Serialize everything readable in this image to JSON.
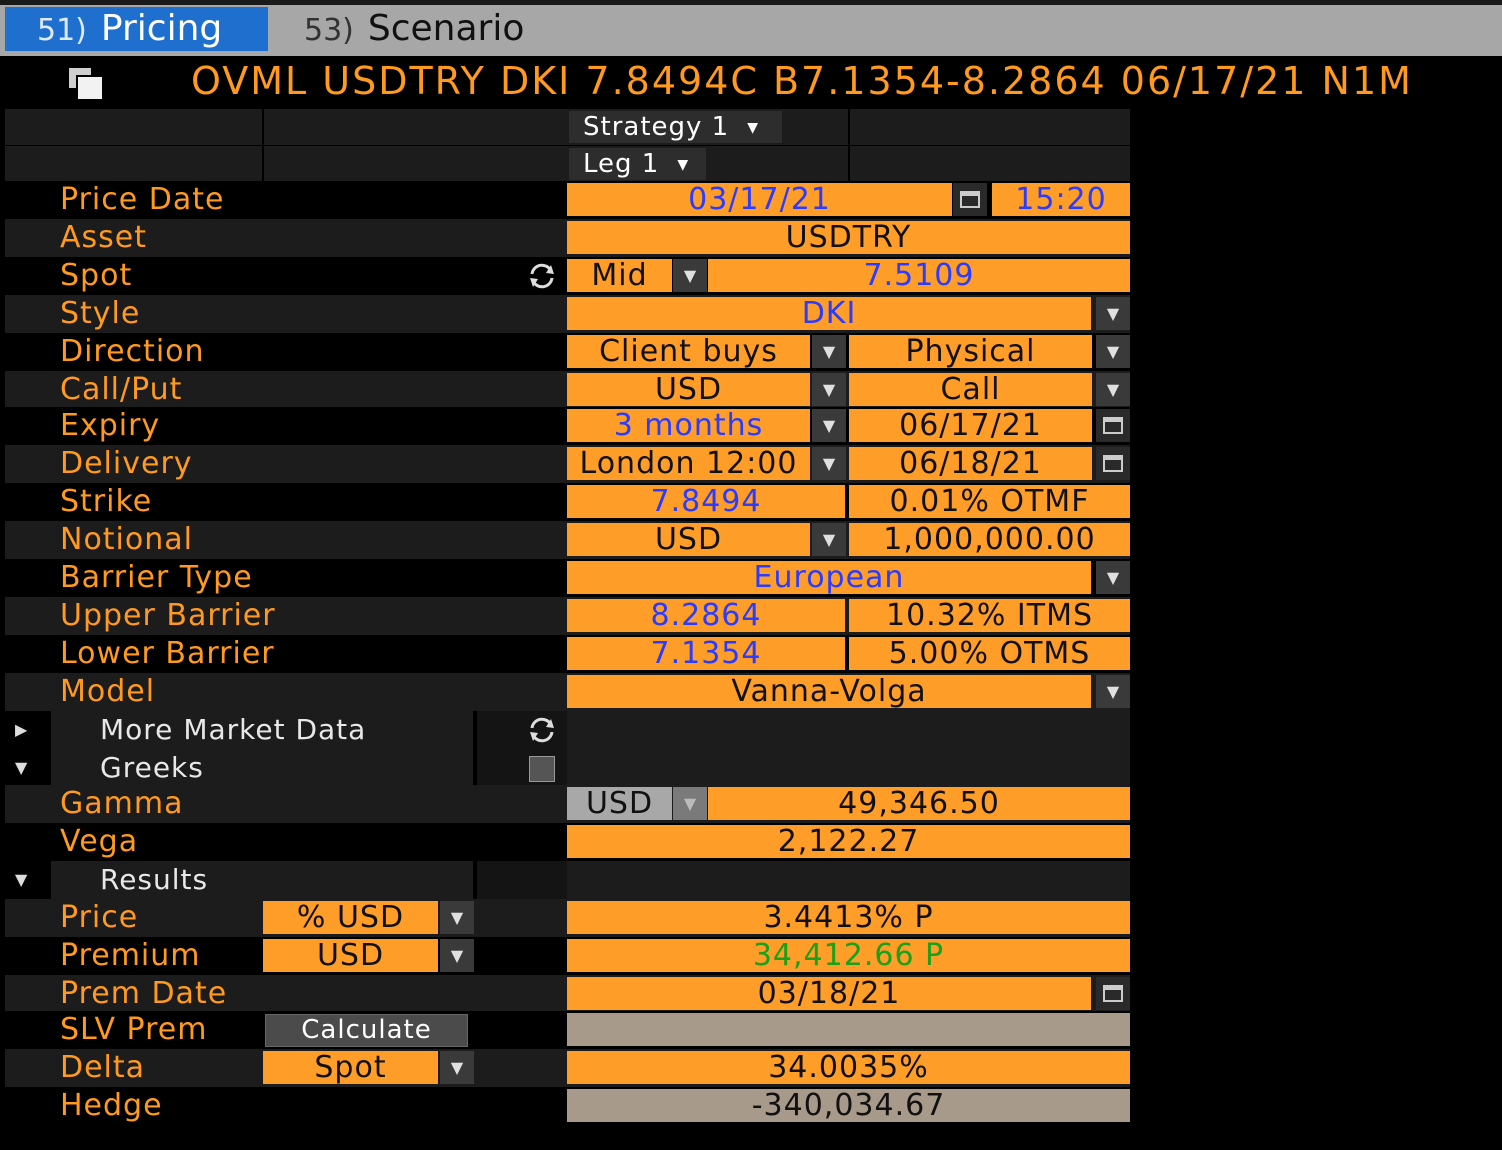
{
  "tabs": [
    {
      "num": "51)",
      "label": "Pricing"
    },
    {
      "num": "53)",
      "label": "Scenario"
    }
  ],
  "header": {
    "title": "OVML USDTRY DKI 7.8494C B7.1354-8.2864 06/17/21 N1M"
  },
  "strategy": {
    "label": "Strategy 1"
  },
  "leg": {
    "label": "Leg 1"
  },
  "fields": {
    "price_date": {
      "label": "Price Date",
      "date": "03/17/21",
      "time": "15:20"
    },
    "asset": {
      "label": "Asset",
      "value": "USDTRY"
    },
    "spot": {
      "label": "Spot",
      "side": "Mid",
      "value": "7.5109"
    },
    "style": {
      "label": "Style",
      "value": "DKI"
    },
    "direction": {
      "label": "Direction",
      "value": "Client buys",
      "settle": "Physical"
    },
    "callput": {
      "label": "Call/Put",
      "ccy": "USD",
      "value": "Call"
    },
    "expiry": {
      "label": "Expiry",
      "tenor": "3 months",
      "date": "06/17/21"
    },
    "delivery": {
      "label": "Delivery",
      "cut": "London 12:00",
      "date": "06/18/21"
    },
    "strike": {
      "label": "Strike",
      "value": "7.8494",
      "moneyness": "0.01% OTMF"
    },
    "notional": {
      "label": "Notional",
      "ccy": "USD",
      "value": "1,000,000.00"
    },
    "barrier_type": {
      "label": "Barrier Type",
      "value": "European"
    },
    "upper_barrier": {
      "label": "Upper Barrier",
      "value": "8.2864",
      "moneyness": "10.32% ITMS"
    },
    "lower_barrier": {
      "label": "Lower Barrier",
      "value": "7.1354",
      "moneyness": "5.00% OTMS"
    },
    "model": {
      "label": "Model",
      "value": "Vanna-Volga"
    }
  },
  "sections": {
    "market_data": "More Market Data",
    "greeks": "Greeks",
    "results": "Results"
  },
  "greeks": {
    "gamma": {
      "label": "Gamma",
      "ccy": "USD",
      "value": "49,346.50"
    },
    "vega": {
      "label": "Vega",
      "value": "2,122.27"
    }
  },
  "results": {
    "price": {
      "label": "Price",
      "unit": "% USD",
      "value": "3.4413% P"
    },
    "premium": {
      "label": "Premium",
      "unit": "USD",
      "value": "34,412.66 P"
    },
    "prem_date": {
      "label": "Prem Date",
      "value": "03/18/21"
    },
    "slv_prem": {
      "label": "SLV Prem",
      "button": "Calculate",
      "value": ""
    },
    "delta": {
      "label": "Delta",
      "unit": "Spot",
      "value": "34.0035%"
    },
    "hedge": {
      "label": "Hedge",
      "value": "-340,034.67"
    }
  },
  "colors": {
    "accent": "#ff9a1f",
    "field": "#ff9d29",
    "tab_active": "#1f6fcf",
    "value_blue": "#2a3cff",
    "value_green": "#1aa01a"
  }
}
